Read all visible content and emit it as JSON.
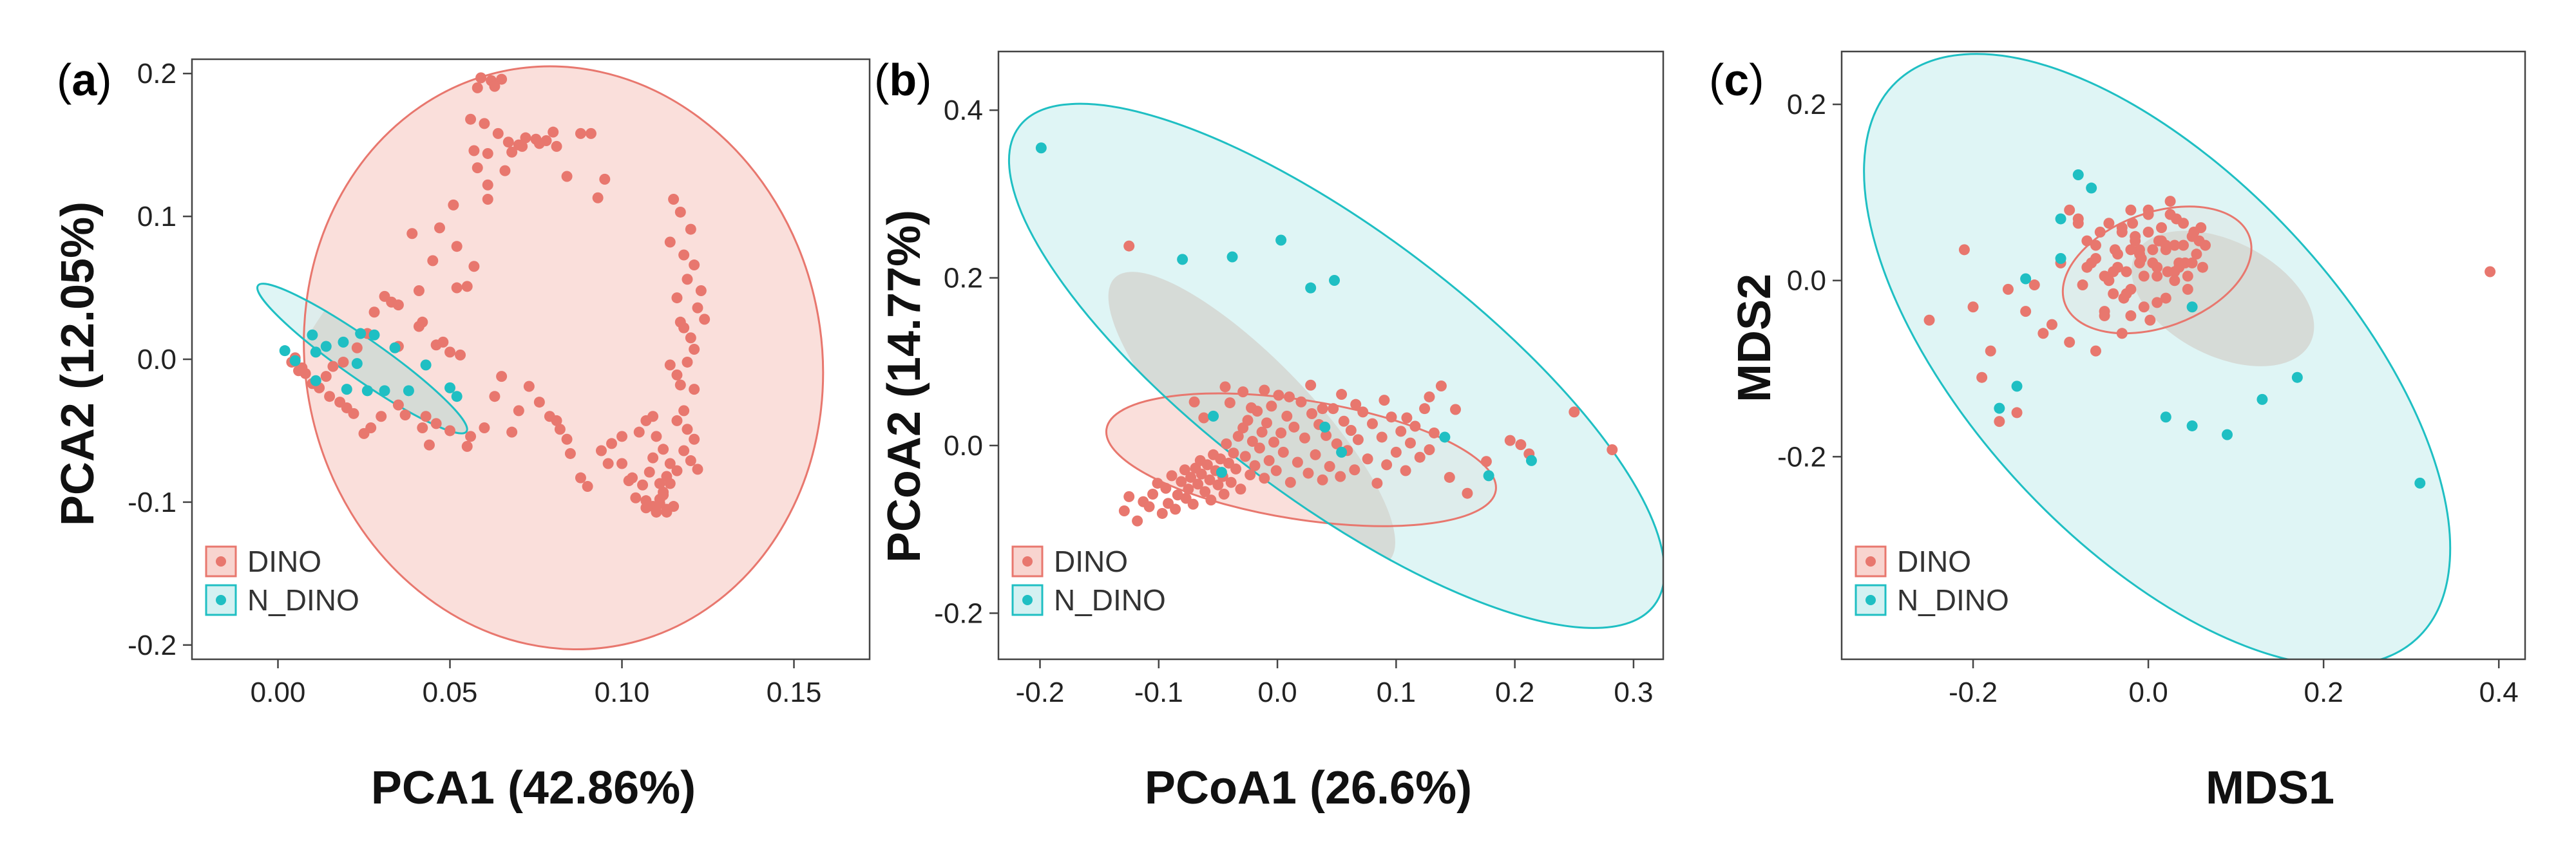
{
  "colors": {
    "dino": "#E8776E",
    "n_dino": "#1FBFC3",
    "dino_fill": "#F8D4CF",
    "n_dino_fill": "#D4F1F2",
    "overlap_fill": "#D5D8D4",
    "axis": "#444444"
  },
  "chart_data": [
    {
      "panel": "(a)",
      "type": "scatter",
      "title": "",
      "xlabel": "PCA1 (42.86%)",
      "ylabel": "PCA2 (12.05%)",
      "xlim": [
        -0.025,
        0.172
      ],
      "ylim": [
        -0.21,
        0.21
      ],
      "xticks": [
        0.0,
        0.05,
        0.1,
        0.15
      ],
      "xtick_labels": [
        "0.00",
        "0.05",
        "0.10",
        "0.15"
      ],
      "yticks": [
        -0.2,
        -0.1,
        0.0,
        0.1,
        0.2
      ],
      "ytick_labels": [
        "-0.2",
        "-0.1",
        "0.0",
        "0.1",
        "0.2"
      ],
      "legend": [
        "DINO",
        "N_DINO"
      ],
      "legend_position": "bottom-left",
      "ellipses": [
        {
          "group": "DINO",
          "cx": 0.083,
          "cy": 0.001,
          "rx": 0.075,
          "ry": 0.205,
          "angle": 12
        },
        {
          "group": "N_DINO",
          "cx": 0.0245,
          "cy": 0.0005,
          "rx": 0.037,
          "ry": 0.014,
          "angle": -35
        }
      ],
      "series": [
        {
          "name": "DINO",
          "x": [
            0.059,
            0.062,
            0.065,
            0.063,
            0.058,
            0.056,
            0.06,
            0.064,
            0.067,
            0.07,
            0.072,
            0.075,
            0.078,
            0.081,
            0.068,
            0.061,
            0.071,
            0.057,
            0.08,
            0.088,
            0.091,
            0.076,
            0.084,
            0.095,
            0.093,
            0.115,
            0.117,
            0.12,
            0.114,
            0.118,
            0.121,
            0.119,
            0.123,
            0.116,
            0.122,
            0.124,
            0.117,
            0.118,
            0.12,
            0.121,
            0.119,
            0.114,
            0.116,
            0.117,
            0.121,
            0.118,
            0.116,
            0.119,
            0.121,
            0.118,
            0.12,
            0.122,
            0.113,
            0.114,
            0.112,
            0.111,
            0.115,
            0.113,
            0.109,
            0.107,
            0.112,
            0.111,
            0.113,
            0.11,
            0.107,
            0.104,
            0.106,
            0.102,
            0.108,
            0.111,
            0.103,
            0.1,
            0.109,
            0.114,
            0.116,
            0.112,
            0.11,
            0.105,
            0.107,
            0.109,
            0.1,
            0.097,
            0.094,
            0.096,
            0.088,
            0.09,
            0.085,
            0.084,
            0.082,
            0.081,
            0.076,
            0.079,
            0.073,
            0.07,
            0.068,
            0.065,
            0.063,
            0.06,
            0.056,
            0.055,
            0.05,
            0.046,
            0.044,
            0.042,
            0.043,
            0.037,
            0.035,
            0.03,
            0.027,
            0.025,
            0.022,
            0.02,
            0.018,
            0.015,
            0.012,
            0.01,
            0.008,
            0.007,
            0.004,
            0.005,
            0.006,
            0.014,
            0.016,
            0.019,
            0.023,
            0.026,
            0.028,
            0.031,
            0.033,
            0.035,
            0.041,
            0.048,
            0.045,
            0.052,
            0.039,
            0.047,
            0.051,
            0.061,
            0.066,
            0.061,
            0.058,
            0.055,
            0.057,
            0.052,
            0.042,
            0.035,
            0.046,
            0.041,
            0.05,
            0.053
          ],
          "y": [
            0.197,
            0.195,
            0.196,
            0.191,
            0.19,
            0.168,
            0.165,
            0.158,
            0.152,
            0.15,
            0.155,
            0.154,
            0.153,
            0.149,
            0.145,
            0.144,
            0.149,
            0.146,
            0.159,
            0.158,
            0.158,
            0.151,
            0.128,
            0.126,
            0.113,
            0.112,
            0.103,
            0.091,
            0.082,
            0.073,
            0.066,
            0.056,
            0.048,
            0.043,
            0.036,
            0.028,
            0.026,
            0.022,
            0.015,
            0.007,
            -0.002,
            -0.004,
            -0.011,
            -0.018,
            -0.021,
            -0.036,
            -0.043,
            -0.049,
            -0.056,
            -0.064,
            -0.071,
            -0.077,
            -0.082,
            -0.087,
            -0.093,
            -0.098,
            -0.103,
            -0.105,
            -0.103,
            -0.099,
            -0.095,
            -0.101,
            -0.107,
            -0.107,
            -0.104,
            -0.097,
            -0.088,
            -0.085,
            -0.079,
            -0.087,
            -0.083,
            -0.073,
            -0.069,
            -0.073,
            -0.078,
            -0.063,
            -0.054,
            -0.051,
            -0.043,
            -0.04,
            -0.054,
            -0.059,
            -0.064,
            -0.073,
            -0.083,
            -0.089,
            -0.066,
            -0.056,
            -0.049,
            -0.043,
            -0.03,
            -0.04,
            -0.019,
            -0.036,
            -0.051,
            -0.012,
            -0.026,
            -0.048,
            -0.054,
            -0.061,
            -0.05,
            -0.045,
            -0.06,
            -0.048,
            -0.04,
            -0.039,
            -0.032,
            -0.04,
            -0.048,
            -0.052,
            -0.038,
            -0.034,
            -0.03,
            -0.026,
            -0.02,
            -0.017,
            -0.01,
            -0.006,
            -0.002,
            0.001,
            -0.008,
            -0.012,
            -0.005,
            -0.002,
            0.008,
            0.018,
            0.033,
            0.044,
            0.04,
            0.038,
            0.048,
            0.012,
            0.069,
            0.079,
            0.088,
            0.092,
            0.108,
            0.112,
            0.132,
            0.122,
            0.134,
            0.051,
            0.065,
            0.05,
            0.026,
            0.009,
            0.01,
            0.023,
            0.005,
            0.003
          ]
        },
        {
          "name": "N_DINO",
          "x": [
            0.002,
            0.005,
            0.01,
            0.011,
            0.014,
            0.019,
            0.023,
            0.024,
            0.028,
            0.011,
            0.026,
            0.02,
            0.031,
            0.034,
            0.038,
            0.043,
            0.05,
            0.052
          ],
          "y": [
            0.006,
            -0.001,
            0.017,
            0.005,
            0.009,
            0.012,
            -0.003,
            0.018,
            0.017,
            -0.015,
            -0.022,
            -0.021,
            -0.022,
            0.008,
            -0.022,
            -0.004,
            -0.02,
            -0.026
          ]
        }
      ]
    },
    {
      "panel": "(b)",
      "type": "scatter",
      "title": "",
      "xlabel": "PCoA1 (26.6%)",
      "ylabel": "PCoA2 (14.77%)",
      "xlim": [
        -0.235,
        0.325
      ],
      "ylim": [
        -0.255,
        0.47
      ],
      "xticks": [
        -0.2,
        -0.1,
        0.0,
        0.1,
        0.2,
        0.3
      ],
      "xtick_labels": [
        "-0.2",
        "-0.1",
        "0.0",
        "0.1",
        "0.2",
        "0.3"
      ],
      "yticks": [
        -0.2,
        0.0,
        0.2,
        0.4
      ],
      "ytick_labels": [
        "-0.2",
        "0.0",
        "0.2",
        "0.4"
      ],
      "legend": [
        "DINO",
        "N_DINO"
      ],
      "legend_position": "bottom-left",
      "ellipses": [
        {
          "group": "DINO",
          "cx": 0.02,
          "cy": -0.017,
          "rx": 0.166,
          "ry": 0.071,
          "angle": -9
        },
        {
          "group": "N_DINO",
          "cx": 0.05,
          "cy": 0.095,
          "rx": 0.335,
          "ry": 0.16,
          "angle": -37
        }
      ],
      "series": [
        {
          "name": "DINO",
          "x": [
            -0.129,
            -0.125,
            -0.118,
            -0.113,
            -0.108,
            -0.105,
            -0.101,
            -0.097,
            -0.094,
            -0.092,
            -0.089,
            -0.086,
            -0.084,
            -0.081,
            -0.078,
            -0.077,
            -0.075,
            -0.073,
            -0.071,
            -0.069,
            -0.067,
            -0.065,
            -0.064,
            -0.061,
            -0.059,
            -0.057,
            -0.056,
            -0.054,
            -0.052,
            -0.05,
            -0.048,
            -0.046,
            -0.045,
            -0.043,
            -0.041,
            -0.039,
            -0.037,
            -0.035,
            -0.033,
            -0.031,
            -0.029,
            -0.027,
            -0.025,
            -0.023,
            -0.021,
            -0.019,
            -0.017,
            -0.015,
            -0.013,
            -0.011,
            -0.009,
            -0.007,
            -0.005,
            -0.003,
            -0.001,
            0.001,
            0.003,
            0.005,
            0.008,
            0.011,
            0.014,
            0.017,
            0.02,
            0.023,
            0.026,
            0.029,
            0.032,
            0.035,
            0.038,
            0.041,
            0.044,
            0.047,
            0.05,
            0.053,
            0.056,
            0.059,
            0.062,
            0.065,
            0.068,
            0.072,
            0.076,
            0.08,
            0.084,
            0.088,
            0.092,
            0.096,
            0.1,
            0.104,
            0.108,
            0.112,
            0.116,
            0.12,
            0.124,
            0.128,
            0.132,
            0.138,
            0.145,
            0.15,
            0.16,
            0.176,
            0.196,
            0.205,
            0.212,
            0.25,
            0.282,
            -0.125,
            -0.07,
            -0.062,
            -0.044,
            -0.04,
            -0.029,
            -0.022,
            -0.011,
            0.01,
            0.028,
            0.038,
            0.054,
            0.066,
            0.09,
            0.109,
            0.128
          ],
          "y": [
            -0.078,
            -0.061,
            -0.09,
            -0.067,
            -0.073,
            -0.058,
            -0.045,
            -0.081,
            -0.051,
            -0.069,
            -0.036,
            -0.076,
            -0.059,
            -0.043,
            -0.029,
            -0.063,
            -0.052,
            -0.038,
            -0.07,
            -0.027,
            -0.046,
            -0.018,
            -0.034,
            -0.055,
            -0.023,
            -0.041,
            -0.065,
            -0.011,
            -0.03,
            -0.047,
            -0.016,
            -0.037,
            -0.058,
            0.002,
            -0.021,
            -0.044,
            -0.009,
            -0.028,
            0.011,
            -0.052,
            0.021,
            -0.013,
            0.03,
            -0.035,
            0.005,
            -0.024,
            0.041,
            -0.003,
            0.016,
            -0.039,
            0.027,
            -0.018,
            0.047,
            0.004,
            -0.03,
            0.06,
            0.015,
            -0.008,
            0.035,
            -0.044,
            0.022,
            -0.02,
            0.052,
            0.009,
            -0.033,
            0.038,
            -0.011,
            0.025,
            -0.041,
            0.012,
            -0.025,
            0.044,
            0.002,
            -0.037,
            0.029,
            -0.006,
            0.018,
            -0.029,
            0.007,
            0.04,
            -0.016,
            0.026,
            -0.045,
            0.01,
            -0.023,
            0.034,
            -0.008,
            0.017,
            -0.03,
            0.003,
            0.023,
            -0.014,
            0.044,
            -0.005,
            0.015,
            0.071,
            -0.038,
            0.043,
            -0.057,
            -0.019,
            0.006,
            0.001,
            -0.01,
            0.04,
            -0.005,
            0.238,
            0.052,
            0.033,
            0.07,
            0.051,
            0.064,
            0.045,
            0.066,
            0.058,
            0.072,
            0.044,
            0.061,
            0.049,
            0.054,
            0.033,
            0.058
          ]
        },
        {
          "name": "N_DINO",
          "x": [
            -0.199,
            -0.08,
            -0.038,
            0.003,
            0.028,
            0.048,
            -0.054,
            -0.047,
            0.04,
            0.054,
            0.141,
            0.178,
            0.214
          ],
          "y": [
            0.355,
            0.222,
            0.225,
            0.245,
            0.188,
            0.197,
            0.035,
            -0.032,
            0.022,
            -0.008,
            0.01,
            -0.036,
            -0.018
          ]
        }
      ]
    },
    {
      "panel": "(c)",
      "type": "scatter",
      "title": "",
      "xlabel": "MDS1",
      "ylabel": "MDS2",
      "xlim": [
        -0.35,
        0.43
      ],
      "ylim": [
        -0.43,
        0.26
      ],
      "xticks": [
        -0.2,
        0.0,
        0.2,
        0.4
      ],
      "xtick_labels": [
        "-0.2",
        "0.0",
        "0.2",
        "0.4"
      ],
      "yticks": [
        -0.2,
        0.0,
        0.2
      ],
      "ytick_labels": [
        "-0.2",
        "0.0",
        "0.2"
      ],
      "legend": [
        "DINO",
        "N_DINO"
      ],
      "legend_position": "bottom-left",
      "ellipses": [
        {
          "group": "DINO",
          "cx": 0.01,
          "cy": 0.012,
          "rx": 0.112,
          "ry": 0.065,
          "angle": 20
        },
        {
          "group": "N_DINO",
          "cx": 0.01,
          "cy": -0.09,
          "rx": 0.435,
          "ry": 0.21,
          "angle": -47
        }
      ],
      "series": [
        {
          "name": "DINO",
          "x": [
            -0.08,
            -0.07,
            -0.06,
            -0.05,
            -0.04,
            -0.035,
            -0.03,
            -0.025,
            -0.02,
            -0.015,
            -0.01,
            -0.005,
            0.0,
            0.005,
            0.01,
            0.015,
            0.02,
            0.025,
            0.03,
            0.035,
            0.04,
            0.045,
            0.05,
            0.055,
            0.06,
            0.065,
            -0.075,
            -0.065,
            -0.055,
            -0.045,
            -0.038,
            -0.028,
            -0.018,
            -0.008,
            0.002,
            0.012,
            0.022,
            0.032,
            0.042,
            0.052,
            0.062,
            -0.06,
            -0.05,
            -0.04,
            -0.03,
            -0.02,
            -0.01,
            0.0,
            0.01,
            0.02,
            0.03,
            0.04,
            0.05,
            0.058,
            -0.045,
            -0.035,
            -0.025,
            -0.015,
            -0.005,
            0.005,
            0.015,
            0.025,
            0.035,
            0.045,
            -0.03,
            -0.02,
            -0.01,
            0.0,
            0.01,
            0.02,
            0.03,
            -0.25,
            -0.21,
            -0.18,
            -0.16,
            -0.14,
            -0.12,
            -0.1,
            -0.09,
            -0.07,
            -0.06,
            -0.2,
            -0.19,
            -0.17,
            -0.15,
            -0.13,
            -0.11,
            -0.08,
            0.39,
            -0.09,
            -0.05,
            -0.02
          ],
          "y": [
            0.07,
            0.045,
            0.025,
            0.005,
            -0.015,
            0.03,
            0.06,
            0.01,
            -0.04,
            0.045,
            0.02,
            -0.03,
            0.075,
            0.035,
            0.005,
            0.06,
            -0.02,
            0.09,
            0.04,
            0.015,
            0.065,
            -0.01,
            0.05,
            0.03,
            0.06,
            0.04,
            -0.005,
            0.02,
            0.055,
            0.0,
            0.035,
            -0.02,
            0.065,
            0.025,
            -0.045,
            0.045,
            0.01,
            0.07,
            0.02,
            0.055,
            0.015,
            0.04,
            -0.035,
            0.01,
            0.055,
            -0.01,
            0.03,
            0.08,
            -0.025,
            0.04,
            0.0,
            0.04,
            0.02,
            0.045,
            0.065,
            0.015,
            -0.015,
            0.05,
            0.005,
            0.02,
            0.045,
            0.075,
            0.02,
            0.005,
            -0.06,
            0.08,
            0.035,
            0.055,
            0.015,
            0.035,
            0.01,
            -0.045,
            0.035,
            -0.08,
            -0.01,
            -0.035,
            -0.06,
            0.02,
            -0.07,
            0.015,
            -0.08,
            -0.03,
            -0.11,
            -0.16,
            -0.15,
            -0.005,
            -0.05,
            0.065,
            0.01,
            0.08,
            -0.04,
            0.035
          ]
        },
        {
          "name": "N_DINO",
          "x": [
            -0.08,
            -0.065,
            -0.1,
            -0.14,
            -0.1,
            0.05,
            0.02,
            0.05,
            0.09,
            0.13,
            0.17,
            0.31,
            -0.15,
            -0.17
          ],
          "y": [
            0.12,
            0.105,
            0.07,
            0.002,
            0.025,
            -0.03,
            -0.155,
            -0.165,
            -0.175,
            -0.135,
            -0.11,
            -0.23,
            -0.12,
            -0.145
          ]
        }
      ]
    }
  ]
}
